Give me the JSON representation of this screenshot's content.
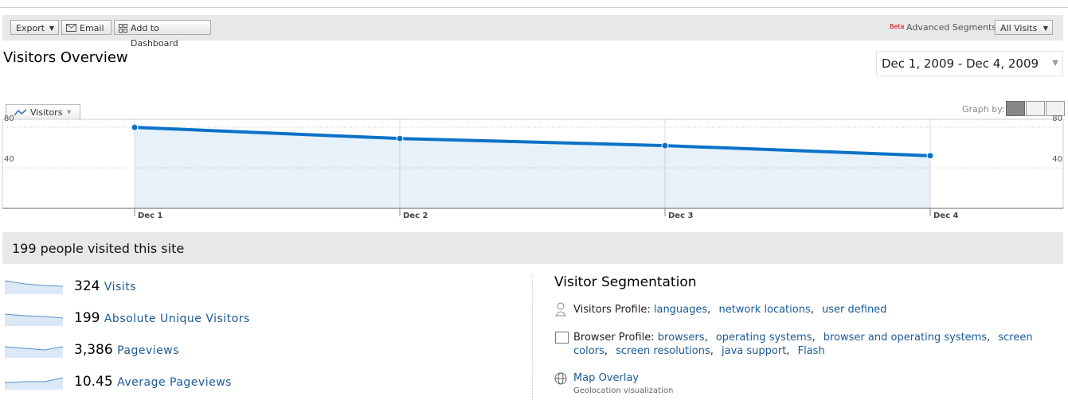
{
  "toolbar": {
    "buttons": [
      "Export",
      "Email",
      "Add to Dashboard"
    ],
    "beta": "Beta",
    "segments_label": "Advanced Segments",
    "segment": "All Visits"
  },
  "header": {
    "title": "Visitors Overview",
    "date_range": "Dec 1, 2009 - Dec 4, 2009"
  },
  "graph": {
    "graph_by": "Graph by:"
  },
  "chart_data": {
    "type": "line",
    "categories": [
      "Dec 1",
      "Dec 2",
      "Dec 3",
      "Dec 4"
    ],
    "series": [
      {
        "name": "Visitors",
        "color": "#0b72c8",
        "values": [
          80,
          69,
          62,
          52
        ]
      }
    ],
    "ylim": [
      0,
      88
    ],
    "yticks": [
      40,
      80
    ],
    "grid": true
  },
  "summary": "199 people visited this site",
  "metrics": [
    {
      "value": "324",
      "label": "Visits"
    },
    {
      "value": "199",
      "label": "Absolute Unique Visitors"
    },
    {
      "value": "3,386",
      "label": "Pageviews"
    },
    {
      "value": "10.45",
      "label": "Average Pageviews"
    }
  ],
  "segmentation": {
    "title": "Visitor Segmentation",
    "separator": ",",
    "visitors_profile": {
      "label": "Visitors Profile:",
      "links": [
        "languages",
        "network locations",
        "user defined"
      ]
    },
    "browser_profile": {
      "label": "Browser Profile:",
      "links": [
        "browsers",
        "operating systems",
        "browser and operating systems",
        "screen colors",
        "screen resolutions",
        "java support",
        "Flash"
      ]
    },
    "map_overlay": {
      "label": "Map Overlay",
      "description": "Geolocation visualization"
    }
  }
}
